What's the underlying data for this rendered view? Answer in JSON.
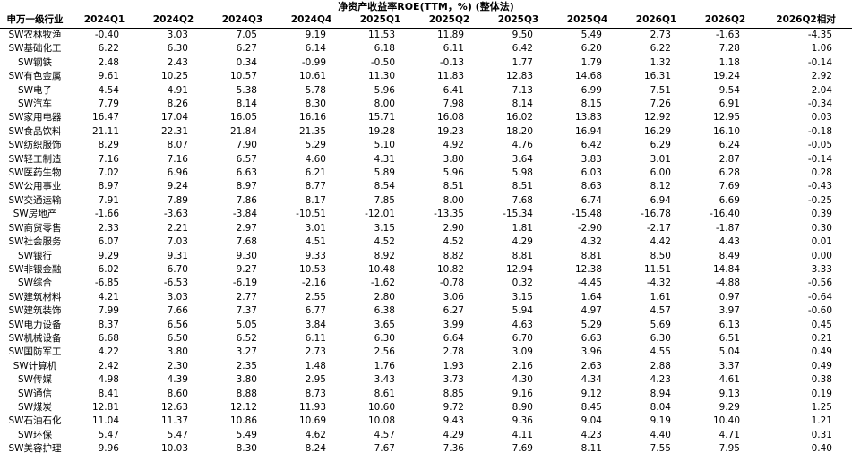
{
  "title": "净资产收益率ROE(TTM，%) (整体法)",
  "table": {
    "header": [
      "申万一级行业",
      "2024Q1",
      "2024Q2",
      "2024Q3",
      "2024Q4",
      "2025Q1",
      "2025Q2",
      "2025Q3",
      "2025Q4",
      "2026Q1",
      "2026Q2",
      "2026Q2相对"
    ],
    "rows": [
      [
        "SW农林牧渔",
        "-0.40",
        "3.03",
        "7.05",
        "9.19",
        "11.53",
        "11.89",
        "9.50",
        "5.49",
        "2.73",
        "-1.63",
        "-4.35"
      ],
      [
        "SW基础化工",
        "6.22",
        "6.30",
        "6.27",
        "6.14",
        "6.18",
        "6.11",
        "6.42",
        "6.20",
        "6.22",
        "7.28",
        "1.06"
      ],
      [
        "SW钢铁",
        "2.48",
        "2.43",
        "0.34",
        "-0.99",
        "-0.50",
        "-0.13",
        "1.77",
        "1.79",
        "1.32",
        "1.18",
        "-0.14"
      ],
      [
        "SW有色金属",
        "9.61",
        "10.25",
        "10.57",
        "10.61",
        "11.30",
        "11.83",
        "12.83",
        "14.68",
        "16.31",
        "19.24",
        "2.92"
      ],
      [
        "SW电子",
        "4.54",
        "4.91",
        "5.38",
        "5.78",
        "5.96",
        "6.41",
        "7.13",
        "6.99",
        "7.51",
        "9.54",
        "2.04"
      ],
      [
        "SW汽车",
        "7.79",
        "8.26",
        "8.14",
        "8.30",
        "8.00",
        "7.98",
        "8.14",
        "8.15",
        "7.26",
        "6.91",
        "-0.34"
      ],
      [
        "SW家用电器",
        "16.47",
        "17.04",
        "16.05",
        "16.16",
        "15.71",
        "16.08",
        "16.02",
        "13.83",
        "12.92",
        "12.95",
        "0.03"
      ],
      [
        "SW食品饮料",
        "21.11",
        "22.31",
        "21.84",
        "21.35",
        "19.28",
        "19.23",
        "18.20",
        "16.94",
        "16.29",
        "16.10",
        "-0.18"
      ],
      [
        "SW纺织服饰",
        "8.29",
        "8.07",
        "7.90",
        "5.29",
        "5.10",
        "4.92",
        "4.76",
        "6.42",
        "6.29",
        "6.24",
        "-0.05"
      ],
      [
        "SW轻工制造",
        "7.16",
        "7.16",
        "6.57",
        "4.60",
        "4.31",
        "3.80",
        "3.64",
        "3.83",
        "3.01",
        "2.87",
        "-0.14"
      ],
      [
        "SW医药生物",
        "7.02",
        "6.96",
        "6.63",
        "6.21",
        "5.89",
        "5.96",
        "5.98",
        "6.03",
        "6.00",
        "6.28",
        "0.28"
      ],
      [
        "SW公用事业",
        "8.97",
        "9.24",
        "8.97",
        "8.77",
        "8.54",
        "8.51",
        "8.51",
        "8.63",
        "8.12",
        "7.69",
        "-0.43"
      ],
      [
        "SW交通运输",
        "7.91",
        "7.89",
        "7.86",
        "8.17",
        "7.85",
        "8.00",
        "7.68",
        "6.74",
        "6.94",
        "6.69",
        "-0.25"
      ],
      [
        "SW房地产",
        "-1.66",
        "-3.63",
        "-3.84",
        "-10.51",
        "-12.01",
        "-13.35",
        "-15.34",
        "-15.48",
        "-16.78",
        "-16.40",
        "0.39"
      ],
      [
        "SW商贸零售",
        "2.33",
        "2.21",
        "2.97",
        "3.01",
        "3.15",
        "2.90",
        "1.81",
        "-2.90",
        "-2.17",
        "-1.87",
        "0.30"
      ],
      [
        "SW社会服务",
        "6.07",
        "7.03",
        "7.68",
        "4.51",
        "4.52",
        "4.52",
        "4.29",
        "4.32",
        "4.42",
        "4.43",
        "0.01"
      ],
      [
        "SW银行",
        "9.29",
        "9.31",
        "9.30",
        "9.33",
        "8.92",
        "8.82",
        "8.81",
        "8.81",
        "8.50",
        "8.49",
        "0.00"
      ],
      [
        "SW非银金融",
        "6.02",
        "6.70",
        "9.27",
        "10.53",
        "10.48",
        "10.82",
        "12.94",
        "12.38",
        "11.51",
        "14.84",
        "3.33"
      ],
      [
        "SW综合",
        "-6.85",
        "-6.53",
        "-6.19",
        "-2.16",
        "-1.62",
        "-0.78",
        "0.32",
        "-4.45",
        "-4.32",
        "-4.88",
        "-0.56"
      ],
      [
        "SW建筑材料",
        "4.21",
        "3.03",
        "2.77",
        "2.55",
        "2.80",
        "3.06",
        "3.15",
        "1.64",
        "1.61",
        "0.97",
        "-0.64"
      ],
      [
        "SW建筑装饰",
        "7.99",
        "7.66",
        "7.37",
        "6.77",
        "6.38",
        "6.27",
        "5.94",
        "4.97",
        "4.57",
        "3.97",
        "-0.60"
      ],
      [
        "SW电力设备",
        "8.37",
        "6.56",
        "5.05",
        "3.84",
        "3.65",
        "3.99",
        "4.63",
        "5.29",
        "5.69",
        "6.13",
        "0.45"
      ],
      [
        "SW机械设备",
        "6.68",
        "6.50",
        "6.52",
        "6.11",
        "6.30",
        "6.64",
        "6.70",
        "6.63",
        "6.30",
        "6.51",
        "0.21"
      ],
      [
        "SW国防军工",
        "4.22",
        "3.80",
        "3.27",
        "2.73",
        "2.56",
        "2.78",
        "3.09",
        "3.96",
        "4.55",
        "5.04",
        "0.49"
      ],
      [
        "SW计算机",
        "2.42",
        "2.30",
        "2.35",
        "1.48",
        "1.76",
        "1.93",
        "2.16",
        "2.63",
        "2.88",
        "3.37",
        "0.49"
      ],
      [
        "SW传媒",
        "4.98",
        "4.39",
        "3.80",
        "2.95",
        "3.43",
        "3.73",
        "4.30",
        "4.34",
        "4.23",
        "4.61",
        "0.38"
      ],
      [
        "SW通信",
        "8.41",
        "8.60",
        "8.88",
        "8.73",
        "8.61",
        "8.85",
        "9.16",
        "9.12",
        "8.94",
        "9.13",
        "0.19"
      ],
      [
        "SW煤炭",
        "12.81",
        "12.63",
        "12.12",
        "11.93",
        "10.60",
        "9.72",
        "8.90",
        "8.45",
        "8.04",
        "9.29",
        "1.25"
      ],
      [
        "SW石油石化",
        "11.04",
        "11.37",
        "10.86",
        "10.69",
        "10.08",
        "9.43",
        "9.36",
        "9.04",
        "9.19",
        "10.40",
        "1.21"
      ],
      [
        "SW环保",
        "5.47",
        "5.47",
        "5.49",
        "4.62",
        "4.57",
        "4.29",
        "4.11",
        "4.23",
        "4.40",
        "4.71",
        "0.31"
      ],
      [
        "SW美容护理",
        "9.96",
        "10.03",
        "8.30",
        "8.24",
        "7.67",
        "7.36",
        "7.69",
        "8.11",
        "7.55",
        "7.95",
        "0.40"
      ]
    ]
  }
}
